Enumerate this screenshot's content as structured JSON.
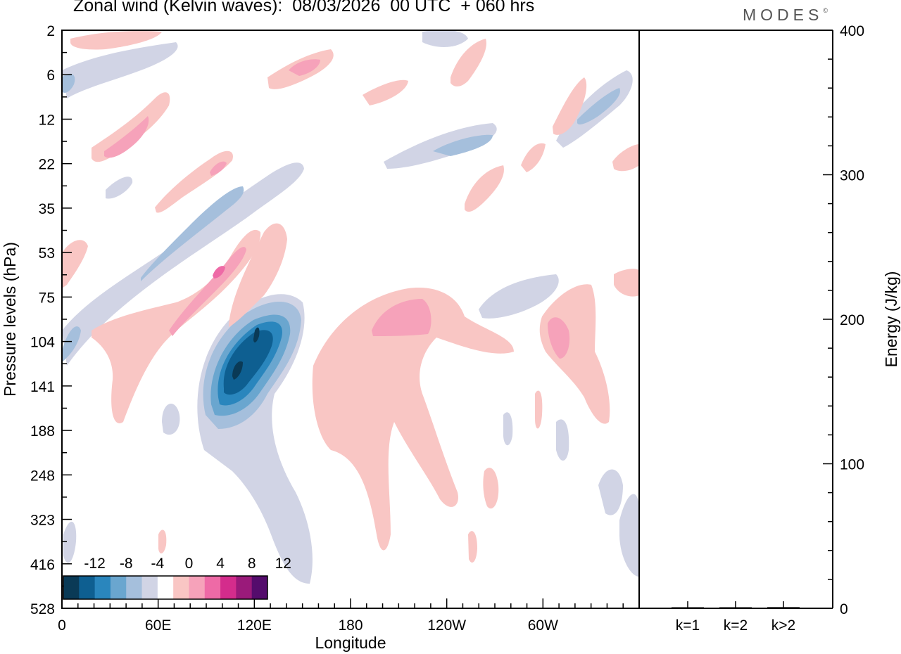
{
  "header": {
    "title": "Zonal wind (Kelvin waves):  08/03/2026  00 UTC  + 060 hrs",
    "brand": "MODES",
    "brand_mark": "©"
  },
  "chart_data": [
    {
      "type": "heatmap",
      "title": "Zonal wind (Kelvin waves):  08/03/2026  00 UTC  + 060 hrs",
      "xlabel": "Longitude",
      "ylabel": "Pressure levels (hPa)",
      "x_ticks": [
        "0",
        "60E",
        "120E",
        "180",
        "120W",
        "60W"
      ],
      "x_tick_degrees": [
        0,
        60,
        120,
        180,
        240,
        300
      ],
      "xlim": [
        0,
        360
      ],
      "y_ticks": [
        "2",
        "6",
        "12",
        "22",
        "35",
        "53",
        "75",
        "104",
        "141",
        "188",
        "248",
        "323",
        "416",
        "528"
      ],
      "y_axis": "pressure levels (index scale, top = 2 hPa)",
      "colorbar": {
        "labels": [
          "-12",
          "-8",
          "-4",
          "0",
          "4",
          "8",
          "12"
        ],
        "label_bounds": [
          -12,
          -8,
          -4,
          0,
          4,
          8,
          12
        ],
        "colors": [
          "#0a3a56",
          "#0e5f91",
          "#2a86bd",
          "#6aa6cf",
          "#a5bfdc",
          "#d1d4e5",
          "#ffffff",
          "#f9c6c4",
          "#f6a2ba",
          "#ee6aa6",
          "#d42c8c",
          "#9a1a7a",
          "#540c6c"
        ],
        "placement": "bottom-left"
      },
      "features": [
        {
          "name": "negative anomaly core",
          "value": -14,
          "lon": 118,
          "level": "141"
        },
        {
          "name": "positive anomaly",
          "value": 8,
          "lon": 100,
          "level": "53"
        },
        {
          "name": "positive anomaly",
          "value": 6,
          "lon": 210,
          "level": "75"
        },
        {
          "name": "positive anomaly",
          "value": 6,
          "lon": 310,
          "level": "104"
        },
        {
          "name": "negative anomaly",
          "value": -6,
          "lon": 330,
          "level": "12"
        }
      ]
    },
    {
      "type": "bar",
      "ylabel": "Energy (J/kg)",
      "categories": [
        "k=1",
        "k=2",
        "k>2"
      ],
      "values": [
        0.3,
        0.4,
        0.8
      ],
      "ylim": [
        0,
        400
      ],
      "y_ticks": [
        "0",
        "100",
        "200",
        "300",
        "400"
      ]
    }
  ]
}
